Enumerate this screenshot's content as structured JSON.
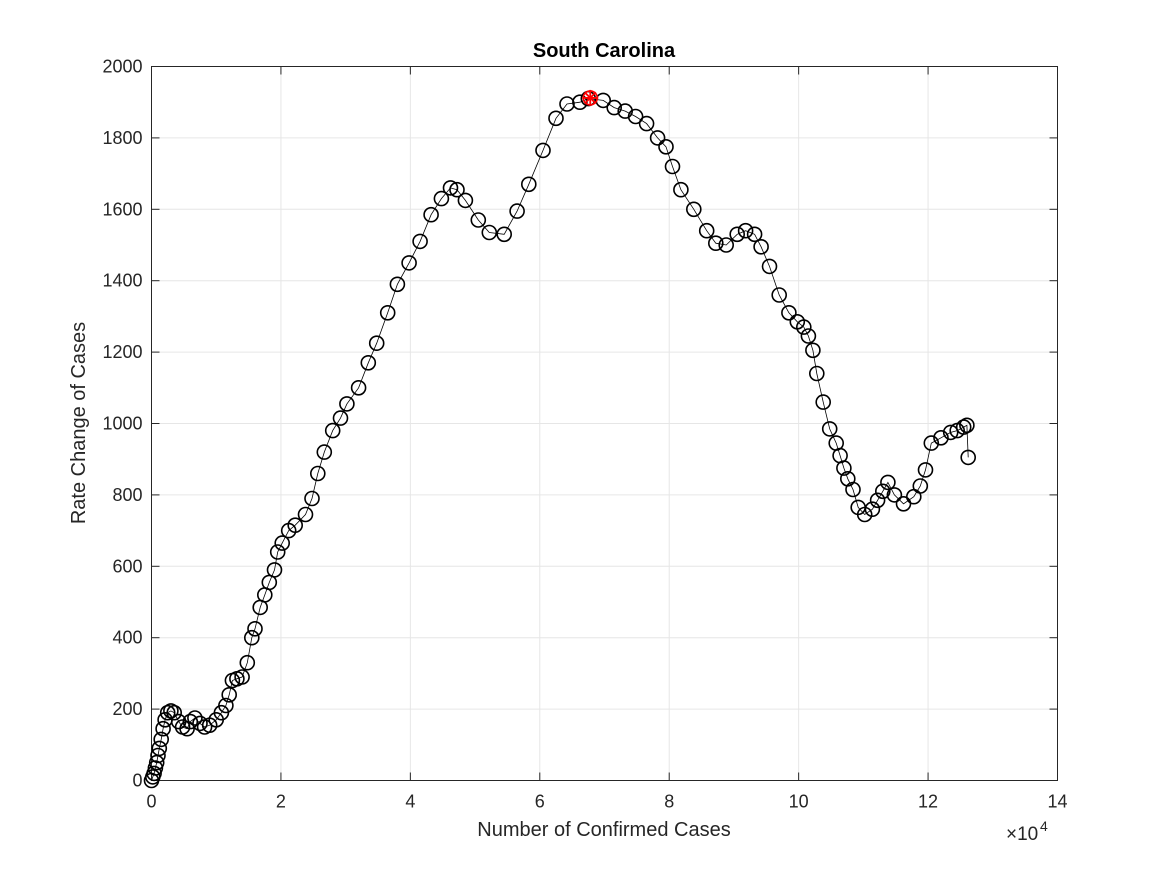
{
  "chart_data": {
    "type": "scatter",
    "title": "South Carolina",
    "xlabel": "Number of Confirmed Cases",
    "ylabel": "Rate Change of Cases",
    "x_exponent_label": "×10",
    "x_exponent_power": "4",
    "xlim": [
      0,
      14
    ],
    "ylim": [
      0,
      2000
    ],
    "x_ticks": [
      0,
      2,
      4,
      6,
      8,
      10,
      12,
      14
    ],
    "y_ticks": [
      0,
      200,
      400,
      600,
      800,
      1000,
      1200,
      1400,
      1600,
      1800,
      2000
    ],
    "x_tick_labels": [
      "0",
      "2",
      "4",
      "6",
      "8",
      "10",
      "12",
      "14"
    ],
    "y_tick_labels": [
      "0",
      "200",
      "400",
      "600",
      "800",
      "1000",
      "1200",
      "1400",
      "1600",
      "1800",
      "2000"
    ],
    "grid": true,
    "series": [
      {
        "marker": "circle",
        "line": "solid",
        "color": "#000000",
        "x": [
          0.0,
          0.02,
          0.04,
          0.06,
          0.08,
          0.1,
          0.12,
          0.15,
          0.18,
          0.21,
          0.25,
          0.3,
          0.35,
          0.42,
          0.48,
          0.55,
          0.6,
          0.67,
          0.75,
          0.82,
          0.9,
          1.0,
          1.08,
          1.15,
          1.2,
          1.25,
          1.32,
          1.4,
          1.48,
          1.55,
          1.6,
          1.68,
          1.75,
          1.82,
          1.9,
          1.95,
          2.02,
          2.12,
          2.22,
          2.38,
          2.48,
          2.57,
          2.67,
          2.8,
          2.92,
          3.02,
          3.2,
          3.35,
          3.48,
          3.65,
          3.8,
          3.98,
          4.15,
          4.32,
          4.48,
          4.62,
          4.72,
          4.85,
          5.05,
          5.22,
          5.45,
          5.65,
          5.83,
          6.05,
          6.25,
          6.42,
          6.62,
          6.75,
          6.98,
          7.15,
          7.32,
          7.48,
          7.65,
          7.82,
          7.95,
          8.05,
          8.18,
          8.38,
          8.58,
          8.72,
          8.88,
          9.05,
          9.18,
          9.32,
          9.42,
          9.55,
          9.7,
          9.85,
          9.98,
          10.08,
          10.15,
          10.22,
          10.28,
          10.38,
          10.48,
          10.58,
          10.64,
          10.7,
          10.76,
          10.84,
          10.92,
          11.02,
          11.14,
          11.22,
          11.3,
          11.38,
          11.48,
          11.62,
          11.78,
          11.88,
          11.96,
          12.05,
          12.2,
          12.35,
          12.45,
          12.55,
          12.6,
          12.62
        ],
        "y": [
          0,
          10,
          20,
          35,
          50,
          70,
          90,
          115,
          145,
          170,
          190,
          195,
          190,
          165,
          150,
          145,
          165,
          175,
          160,
          150,
          155,
          170,
          190,
          210,
          240,
          280,
          285,
          290,
          330,
          400,
          425,
          485,
          520,
          555,
          590,
          640,
          665,
          700,
          715,
          745,
          790,
          860,
          920,
          980,
          1015,
          1055,
          1100,
          1170,
          1225,
          1310,
          1390,
          1450,
          1510,
          1585,
          1630,
          1660,
          1655,
          1625,
          1570,
          1535,
          1530,
          1595,
          1670,
          1765,
          1855,
          1895,
          1900,
          1910,
          1905,
          1885,
          1875,
          1860,
          1840,
          1800,
          1775,
          1720,
          1655,
          1600,
          1540,
          1505,
          1500,
          1530,
          1540,
          1530,
          1495,
          1440,
          1360,
          1310,
          1285,
          1270,
          1245,
          1205,
          1140,
          1060,
          985,
          945,
          910,
          875,
          845,
          815,
          765,
          745,
          760,
          785,
          810,
          835,
          800,
          775,
          795,
          825,
          870,
          945,
          960,
          975,
          980,
          990,
          995,
          905
        ]
      }
    ],
    "highlight_point": {
      "x": 6.78,
      "y": 1912,
      "marker": "asterisk",
      "color": "#ff0000"
    }
  }
}
